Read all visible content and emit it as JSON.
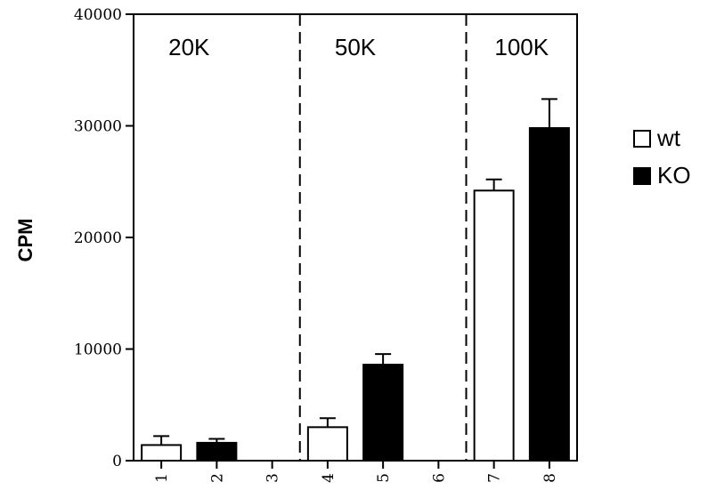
{
  "chart_data": {
    "type": "bar",
    "title": "",
    "xlabel": "",
    "ylabel": "CPM",
    "ylim": [
      0,
      40000
    ],
    "yticks": [
      "0",
      "10000",
      "20000",
      "30000",
      "40000"
    ],
    "ytick_values": [
      0,
      10000,
      20000,
      30000,
      40000
    ],
    "categories": [
      "1",
      "2",
      "3",
      "4",
      "5",
      "6",
      "7",
      "8"
    ],
    "bars": [
      {
        "category": "1",
        "series": "wt",
        "value": 1400,
        "error": 800
      },
      {
        "category": "2",
        "series": "KO",
        "value": 1600,
        "error": 350
      },
      {
        "category": "4",
        "series": "wt",
        "value": 3000,
        "error": 800
      },
      {
        "category": "5",
        "series": "KO",
        "value": 8600,
        "error": 950
      },
      {
        "category": "7",
        "series": "wt",
        "value": 24200,
        "error": 1000
      },
      {
        "category": "8",
        "series": "KO",
        "value": 29800,
        "error": 2600
      }
    ],
    "dividers_after_category": [
      "3",
      "6"
    ],
    "groups": [
      {
        "label": "20K",
        "categories": [
          "1",
          "2"
        ]
      },
      {
        "label": "50K",
        "categories": [
          "4",
          "5"
        ]
      },
      {
        "label": "100K",
        "categories": [
          "7",
          "8"
        ]
      }
    ],
    "series": [
      {
        "name": "wt",
        "color": "#ffffff"
      },
      {
        "name": "KO",
        "color": "#000000"
      }
    ],
    "legend": {
      "placement": "right",
      "entries": [
        "wt",
        "KO"
      ]
    },
    "grid": false
  }
}
